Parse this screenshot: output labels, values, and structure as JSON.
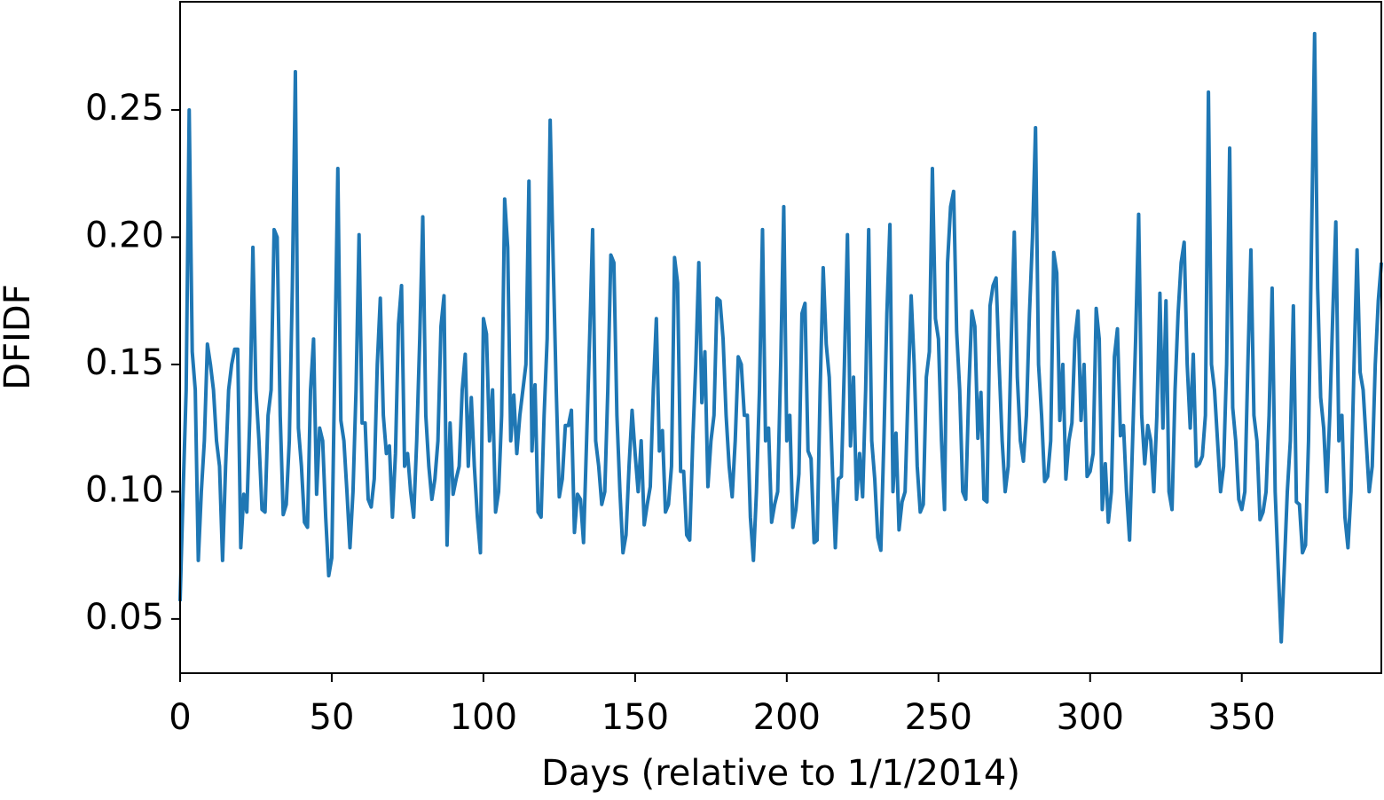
{
  "chart_data": {
    "type": "line",
    "x_label": "Days (relative to 1/1/2014)",
    "y_label": "DFIDF",
    "color": "#1f77b4",
    "xlim": [
      0,
      396
    ],
    "ylim": [
      0.0287,
      0.2925
    ],
    "xticks": [
      0,
      50,
      100,
      150,
      200,
      250,
      300,
      350
    ],
    "yticks": [
      0.05,
      {
        "value": 0.1,
        "label": "0.10"
      },
      0.15,
      {
        "value": 0.2,
        "label": "0.20"
      },
      0.25
    ],
    "x": [
      0,
      1,
      2,
      3,
      4,
      5,
      6,
      7,
      8,
      9,
      10,
      11,
      12,
      13,
      14,
      15,
      16,
      17,
      18,
      19,
      20,
      21,
      22,
      23,
      24,
      25,
      26,
      27,
      28,
      29,
      30,
      31,
      32,
      33,
      34,
      35,
      36,
      37,
      38,
      39,
      40,
      41,
      42,
      43,
      44,
      45,
      46,
      47,
      48,
      49,
      50,
      51,
      52,
      53,
      54,
      55,
      56,
      57,
      58,
      59,
      60,
      61,
      62,
      63,
      64,
      65,
      66,
      67,
      68,
      69,
      70,
      71,
      72,
      73,
      74,
      75,
      76,
      77,
      78,
      79,
      80,
      81,
      82,
      83,
      84,
      85,
      86,
      87,
      88,
      89,
      90,
      91,
      92,
      93,
      94,
      95,
      96,
      97,
      98,
      99,
      100,
      101,
      102,
      103,
      104,
      105,
      106,
      107,
      108,
      109,
      110,
      111,
      112,
      113,
      114,
      115,
      116,
      117,
      118,
      119,
      120,
      121,
      122,
      123,
      124,
      125,
      126,
      127,
      128,
      129,
      130,
      131,
      132,
      133,
      134,
      135,
      136,
      137,
      138,
      139,
      140,
      141,
      142,
      143,
      144,
      145,
      146,
      147,
      148,
      149,
      150,
      151,
      152,
      153,
      154,
      155,
      156,
      157,
      158,
      159,
      160,
      161,
      162,
      163,
      164,
      165,
      166,
      167,
      168,
      169,
      170,
      171,
      172,
      173,
      174,
      175,
      176,
      177,
      178,
      179,
      180,
      181,
      182,
      183,
      184,
      185,
      186,
      187,
      188,
      189,
      190,
      191,
      192,
      193,
      194,
      195,
      196,
      197,
      198,
      199,
      200,
      201,
      202,
      203,
      204,
      205,
      206,
      207,
      208,
      209,
      210,
      211,
      212,
      213,
      214,
      215,
      216,
      217,
      218,
      219,
      220,
      221,
      222,
      223,
      224,
      225,
      226,
      227,
      228,
      229,
      230,
      231,
      232,
      233,
      234,
      235,
      236,
      237,
      238,
      239,
      240,
      241,
      242,
      243,
      244,
      245,
      246,
      247,
      248,
      249,
      250,
      251,
      252,
      253,
      254,
      255,
      256,
      257,
      258,
      259,
      260,
      261,
      262,
      263,
      264,
      265,
      266,
      267,
      268,
      269,
      270,
      271,
      272,
      273,
      274,
      275,
      276,
      277,
      278,
      279,
      280,
      281,
      282,
      283,
      284,
      285,
      286,
      287,
      288,
      289,
      290,
      291,
      292,
      293,
      294,
      295,
      296,
      297,
      298,
      299,
      300,
      301,
      302,
      303,
      304,
      305,
      306,
      307,
      308,
      309,
      310,
      311,
      312,
      313,
      314,
      315,
      316,
      317,
      318,
      319,
      320,
      321,
      322,
      323,
      324,
      325,
      326,
      327,
      328,
      329,
      330,
      331,
      332,
      333,
      334,
      335,
      336,
      337,
      338,
      339,
      340,
      341,
      342,
      343,
      344,
      345,
      346,
      347,
      348,
      349,
      350,
      351,
      352,
      353,
      354,
      355,
      356,
      357,
      358,
      359,
      360,
      361,
      362,
      363,
      364,
      365,
      366,
      367,
      368,
      369,
      370,
      371,
      372,
      373,
      374,
      375,
      376,
      377,
      378,
      379,
      380,
      381,
      382,
      383,
      384,
      385,
      386,
      387,
      388,
      389,
      390,
      391,
      392,
      393,
      394,
      395,
      396
    ],
    "values": [
      0.057,
      0.1,
      0.14,
      0.25,
      0.155,
      0.14,
      0.073,
      0.1,
      0.12,
      0.158,
      0.15,
      0.14,
      0.12,
      0.11,
      0.073,
      0.11,
      0.14,
      0.15,
      0.156,
      0.156,
      0.078,
      0.099,
      0.092,
      0.13,
      0.196,
      0.14,
      0.12,
      0.093,
      0.092,
      0.13,
      0.14,
      0.203,
      0.2,
      0.13,
      0.091,
      0.095,
      0.12,
      0.18,
      0.265,
      0.125,
      0.11,
      0.088,
      0.086,
      0.14,
      0.16,
      0.099,
      0.125,
      0.12,
      0.09,
      0.067,
      0.074,
      0.15,
      0.227,
      0.128,
      0.12,
      0.1,
      0.078,
      0.1,
      0.14,
      0.201,
      0.127,
      0.127,
      0.097,
      0.094,
      0.105,
      0.15,
      0.176,
      0.13,
      0.115,
      0.118,
      0.09,
      0.115,
      0.166,
      0.181,
      0.11,
      0.115,
      0.1,
      0.09,
      0.12,
      0.16,
      0.208,
      0.13,
      0.11,
      0.097,
      0.105,
      0.12,
      0.165,
      0.177,
      0.079,
      0.127,
      0.099,
      0.105,
      0.11,
      0.14,
      0.154,
      0.11,
      0.137,
      0.11,
      0.09,
      0.076,
      0.168,
      0.162,
      0.12,
      0.14,
      0.092,
      0.1,
      0.13,
      0.215,
      0.196,
      0.12,
      0.138,
      0.115,
      0.13,
      0.14,
      0.15,
      0.222,
      0.116,
      0.142,
      0.092,
      0.09,
      0.13,
      0.16,
      0.246,
      0.19,
      0.14,
      0.098,
      0.105,
      0.126,
      0.126,
      0.132,
      0.084,
      0.099,
      0.097,
      0.08,
      0.12,
      0.16,
      0.203,
      0.12,
      0.11,
      0.095,
      0.1,
      0.14,
      0.193,
      0.19,
      0.13,
      0.1,
      0.076,
      0.083,
      0.11,
      0.132,
      0.115,
      0.1,
      0.12,
      0.087,
      0.095,
      0.102,
      0.14,
      0.168,
      0.116,
      0.124,
      0.092,
      0.095,
      0.11,
      0.192,
      0.182,
      0.108,
      0.108,
      0.083,
      0.081,
      0.12,
      0.15,
      0.19,
      0.135,
      0.155,
      0.102,
      0.12,
      0.13,
      0.176,
      0.175,
      0.16,
      0.13,
      0.11,
      0.098,
      0.12,
      0.153,
      0.15,
      0.13,
      0.13,
      0.09,
      0.073,
      0.1,
      0.14,
      0.203,
      0.12,
      0.125,
      0.088,
      0.095,
      0.1,
      0.15,
      0.212,
      0.12,
      0.13,
      0.086,
      0.093,
      0.107,
      0.17,
      0.174,
      0.116,
      0.113,
      0.08,
      0.081,
      0.14,
      0.188,
      0.158,
      0.145,
      0.11,
      0.078,
      0.105,
      0.106,
      0.15,
      0.201,
      0.118,
      0.145,
      0.097,
      0.115,
      0.098,
      0.14,
      0.203,
      0.12,
      0.105,
      0.082,
      0.077,
      0.12,
      0.17,
      0.205,
      0.1,
      0.123,
      0.085,
      0.096,
      0.1,
      0.14,
      0.177,
      0.15,
      0.11,
      0.092,
      0.095,
      0.145,
      0.155,
      0.227,
      0.168,
      0.16,
      0.12,
      0.093,
      0.19,
      0.212,
      0.218,
      0.163,
      0.14,
      0.1,
      0.097,
      0.14,
      0.171,
      0.165,
      0.121,
      0.139,
      0.097,
      0.096,
      0.173,
      0.181,
      0.184,
      0.15,
      0.12,
      0.1,
      0.11,
      0.16,
      0.202,
      0.145,
      0.12,
      0.112,
      0.13,
      0.17,
      0.2,
      0.243,
      0.15,
      0.13,
      0.104,
      0.106,
      0.12,
      0.194,
      0.186,
      0.128,
      0.15,
      0.105,
      0.12,
      0.127,
      0.16,
      0.171,
      0.128,
      0.15,
      0.106,
      0.108,
      0.115,
      0.172,
      0.16,
      0.093,
      0.111,
      0.088,
      0.1,
      0.153,
      0.164,
      0.122,
      0.126,
      0.1,
      0.081,
      0.12,
      0.16,
      0.209,
      0.13,
      0.111,
      0.126,
      0.12,
      0.1,
      0.13,
      0.178,
      0.125,
      0.175,
      0.1,
      0.093,
      0.14,
      0.17,
      0.19,
      0.198,
      0.15,
      0.125,
      0.154,
      0.11,
      0.111,
      0.114,
      0.13,
      0.257,
      0.15,
      0.14,
      0.12,
      0.1,
      0.11,
      0.15,
      0.235,
      0.133,
      0.12,
      0.097,
      0.093,
      0.1,
      0.15,
      0.195,
      0.13,
      0.12,
      0.089,
      0.092,
      0.1,
      0.13,
      0.18,
      0.1,
      0.07,
      0.041,
      0.07,
      0.1,
      0.12,
      0.173,
      0.096,
      0.095,
      0.076,
      0.079,
      0.12,
      0.2,
      0.28,
      0.18,
      0.137,
      0.125,
      0.1,
      0.13,
      0.17,
      0.206,
      0.12,
      0.13,
      0.09,
      0.078,
      0.1,
      0.15,
      0.195,
      0.147,
      0.14,
      0.12,
      0.1,
      0.11,
      0.15,
      0.175,
      0.19
    ]
  }
}
